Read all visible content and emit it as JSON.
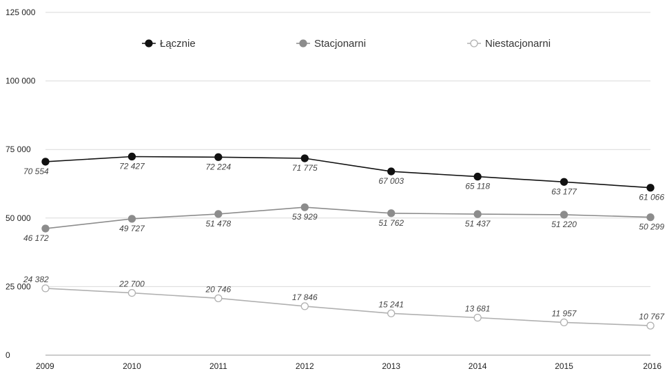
{
  "chart_data": {
    "type": "line",
    "title": "",
    "xlabel": "",
    "ylabel": "",
    "x": [
      "2009",
      "2010",
      "2011",
      "2012",
      "2013",
      "2014",
      "2015",
      "2016"
    ],
    "ylim": [
      0,
      125000
    ],
    "yticks": [
      0,
      25000,
      50000,
      75000,
      100000,
      125000
    ],
    "ytick_labels": [
      "0",
      "25 000",
      "50 000",
      "75 000",
      "100 000",
      "125 000"
    ],
    "grid": true,
    "legend_position": "top",
    "series": [
      {
        "name": "Łącznie",
        "color": "#111111",
        "marker_fill": "#111111",
        "values": [
          70554,
          72427,
          72224,
          71775,
          67003,
          65118,
          63177,
          61066
        ],
        "labels": [
          "70 554",
          "72 427",
          "72 224",
          "71 775",
          "67 003",
          "65 118",
          "63 177",
          "61 066"
        ]
      },
      {
        "name": "Stacjonarni",
        "color": "#8c8c8c",
        "marker_fill": "#8c8c8c",
        "values": [
          46172,
          49727,
          51478,
          53929,
          51762,
          51437,
          51220,
          50299
        ],
        "labels": [
          "46 172",
          "49 727",
          "51 478",
          "53 929",
          "51 762",
          "51 437",
          "51 220",
          "50 299"
        ]
      },
      {
        "name": "Niestacjonarni",
        "color": "#b0b0b0",
        "marker_fill": "#ffffff",
        "values": [
          24382,
          22700,
          20746,
          17846,
          15241,
          13681,
          11957,
          10767
        ],
        "labels": [
          "24 382",
          "22 700",
          "20 746",
          "17 846",
          "15 241",
          "13 681",
          "11 957",
          "10 767"
        ]
      }
    ]
  }
}
